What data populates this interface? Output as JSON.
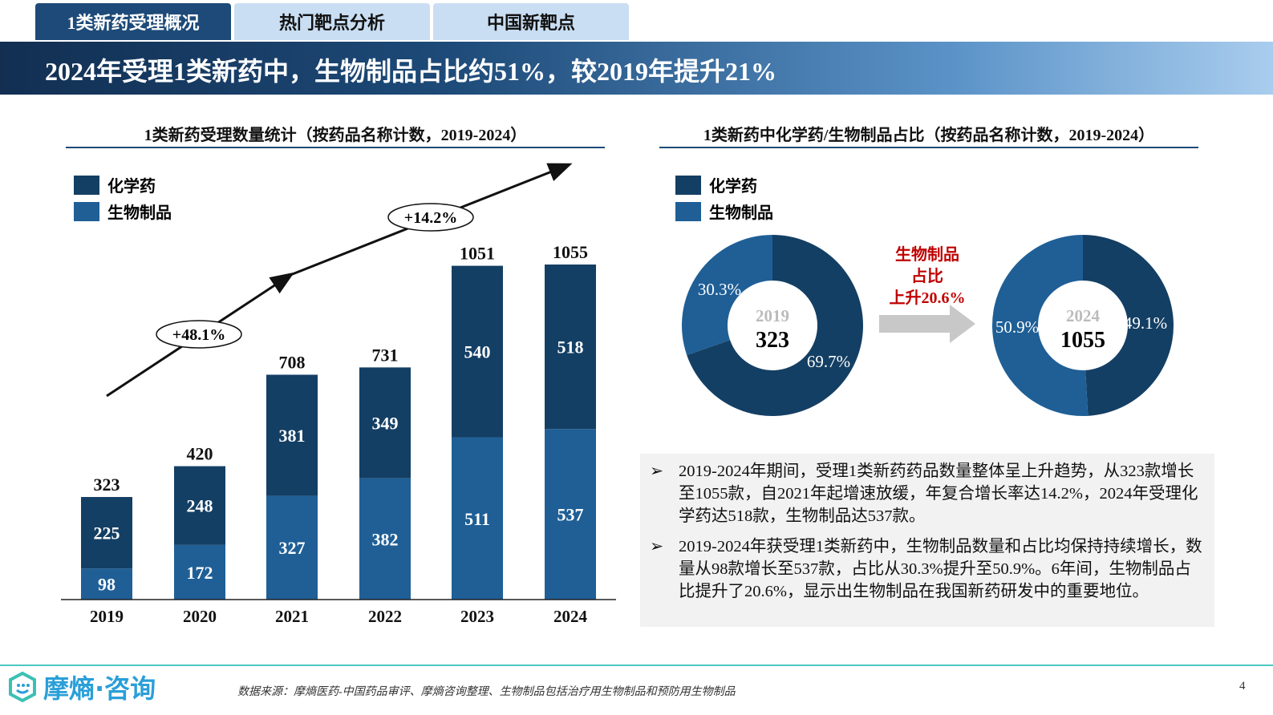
{
  "tabs": [
    {
      "label": "1类新药受理概况",
      "active": true
    },
    {
      "label": "热门靶点分析",
      "active": false
    },
    {
      "label": "中国新靶点",
      "active": false
    }
  ],
  "banner": {
    "title": "2024年受理1类新药中，生物制品占比约51%，较2019年提升21%"
  },
  "colors": {
    "chem": "#143f64",
    "bio": "#1f5f96",
    "accent_red": "#c00000",
    "footer_line": "#4cc9c0"
  },
  "chart_data": [
    {
      "type": "bar",
      "stacked": true,
      "title": "1类新药受理数量统计（按药品名称计数，2019-2024）",
      "categories": [
        "2019",
        "2020",
        "2021",
        "2022",
        "2023",
        "2024"
      ],
      "series": [
        {
          "name": "化学药",
          "values": [
            225,
            248,
            381,
            349,
            540,
            518
          ]
        },
        {
          "name": "生物制品",
          "values": [
            98,
            172,
            327,
            382,
            511,
            537
          ]
        }
      ],
      "totals": [
        323,
        420,
        708,
        731,
        1051,
        1055
      ],
      "annotations": [
        "+48.1%",
        "+14.2%"
      ],
      "legend": "top-left",
      "ylim": [
        0,
        1100
      ]
    },
    {
      "type": "pie",
      "donut": true,
      "title": "1类新药中化学药/生物制品占比（按药品名称计数，2019-2024）",
      "legend": "top-left",
      "donuts": [
        {
          "year": "2019",
          "total": "323",
          "slices": [
            {
              "name": "化学药",
              "value": 69.7,
              "label": "69.7%"
            },
            {
              "name": "生物制品",
              "value": 30.3,
              "label": "30.3%"
            }
          ]
        },
        {
          "year": "2024",
          "total": "1055",
          "slices": [
            {
              "name": "化学药",
              "value": 49.1,
              "label": "49.1%"
            },
            {
              "name": "生物制品",
              "value": 50.9,
              "label": "50.9%"
            }
          ]
        }
      ],
      "change_label": [
        "生物制品",
        "占比",
        "上升20.6%"
      ]
    }
  ],
  "legend": [
    "化学药",
    "生物制品"
  ],
  "notes": [
    "2019-2024年期间，受理1类新药药品数量整体呈上升趋势，从323款增长至1055款，自2021年起增速放缓，年复合增长率达14.2%，2024年受理化学药达518款，生物制品达537款。",
    "2019-2024年获受理1类新药中，生物制品数量和占比均保持持续增长，数量从98款增长至537款，占比从30.3%提升至50.9%。6年间，生物制品占比提升了20.6%，显示出生物制品在我国新药研发中的重要地位。"
  ],
  "bullet_icon": "➢",
  "footer": {
    "logo": "摩熵·咨询",
    "source": "数据来源：摩熵医药-中国药品审评、摩熵咨询整理、生物制品包括治疗用生物制品和预防用生物制品",
    "page": "4"
  }
}
